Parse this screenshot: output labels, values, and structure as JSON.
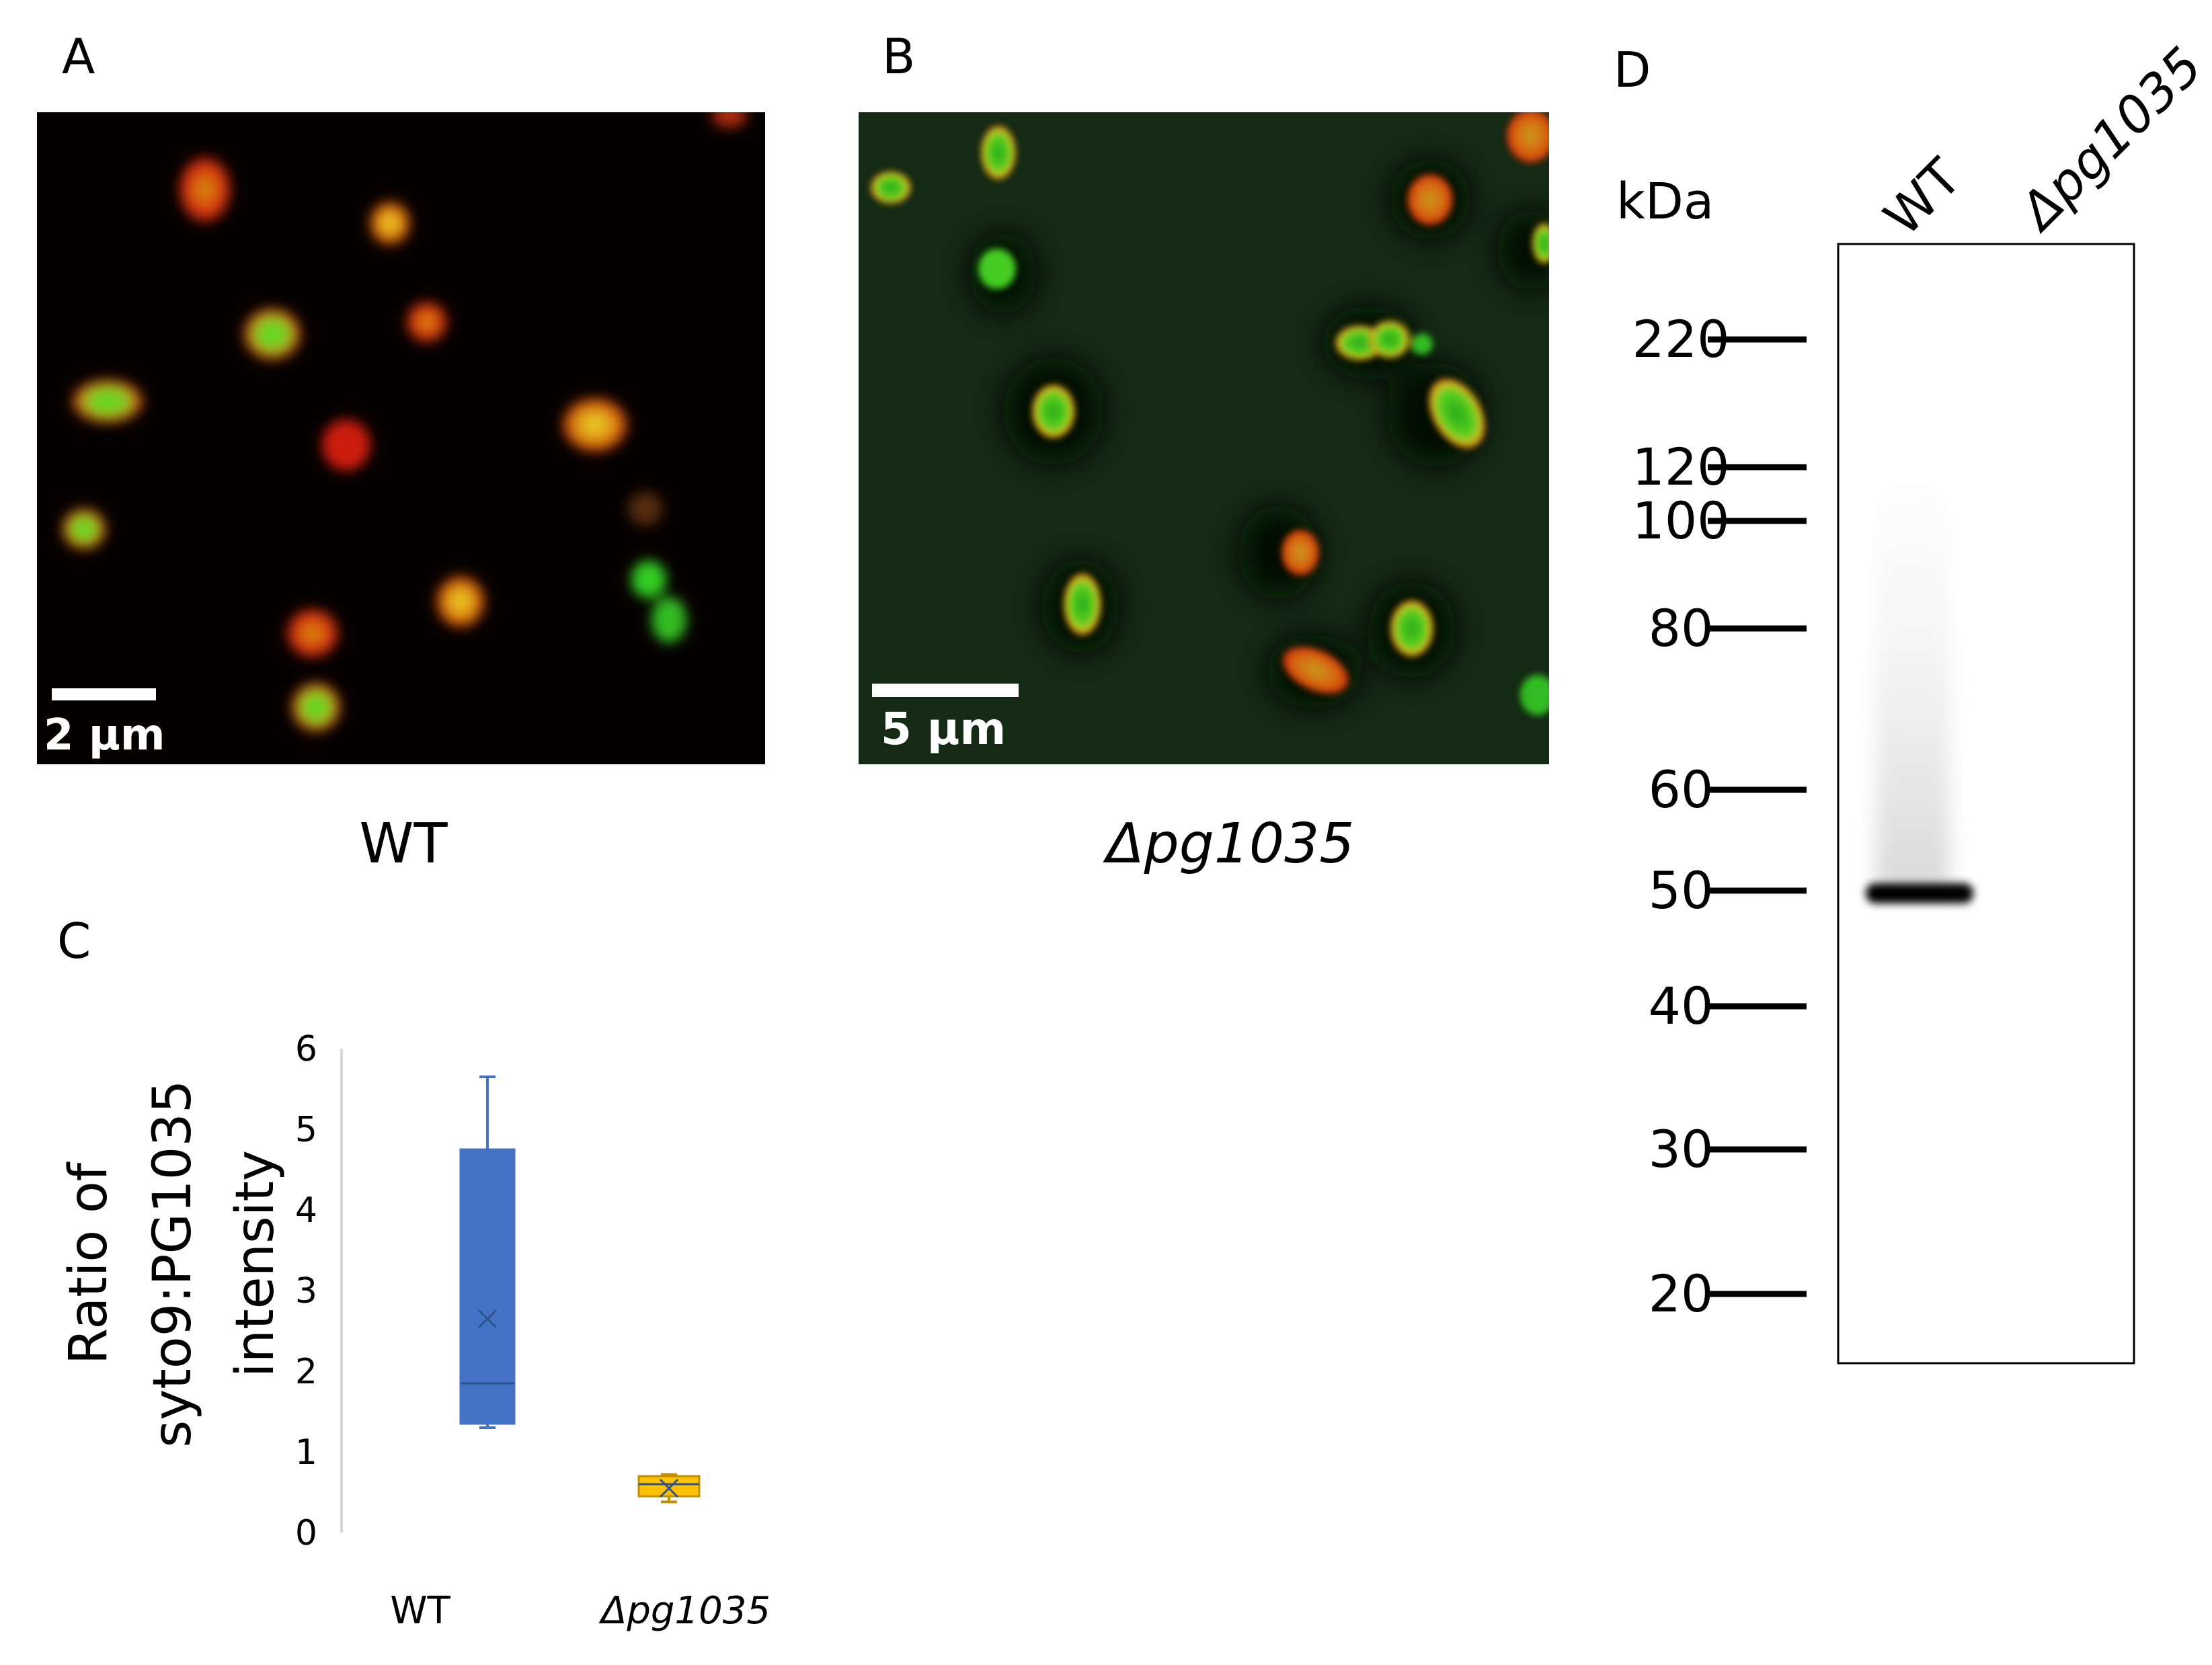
{
  "figure": {
    "panel_a": {
      "letter": "A",
      "scale_bar_label": "2 μm",
      "caption": "WT"
    },
    "panel_b": {
      "letter": "B",
      "scale_bar_label": "5 μm",
      "caption": "Δpg1035"
    },
    "panel_c": {
      "letter": "C"
    },
    "panel_d": {
      "letter": "D",
      "unit_label": "kDa",
      "lane_labels": [
        "WT",
        "Δpg1035"
      ],
      "markers": [
        "220",
        "120",
        "100",
        "80",
        "60",
        "50",
        "40",
        "30",
        "20"
      ]
    }
  },
  "colors": {
    "wt_box": "#4472c4",
    "mutant_box": "#ffc000",
    "mutant_edge": "#c09000",
    "axis": "#d9d9d9"
  },
  "chart_data": {
    "type": "box",
    "title": "",
    "ylabel": [
      "Ratio of",
      "syto9:PG1035",
      "intensity"
    ],
    "ylim": [
      0,
      6
    ],
    "yticks": [
      "0",
      "1",
      "2",
      "3",
      "4",
      "5",
      "6"
    ],
    "categories": [
      "WT",
      "Δpg1035"
    ],
    "series": [
      {
        "category": "WT",
        "min": 1.3,
        "q1": 1.35,
        "median": 1.85,
        "mean": 2.65,
        "q3": 4.75,
        "max": 5.65
      },
      {
        "category": "Δpg1035",
        "min": 0.38,
        "q1": 0.45,
        "median": 0.6,
        "mean": 0.55,
        "q3": 0.7,
        "max": 0.72
      }
    ]
  }
}
